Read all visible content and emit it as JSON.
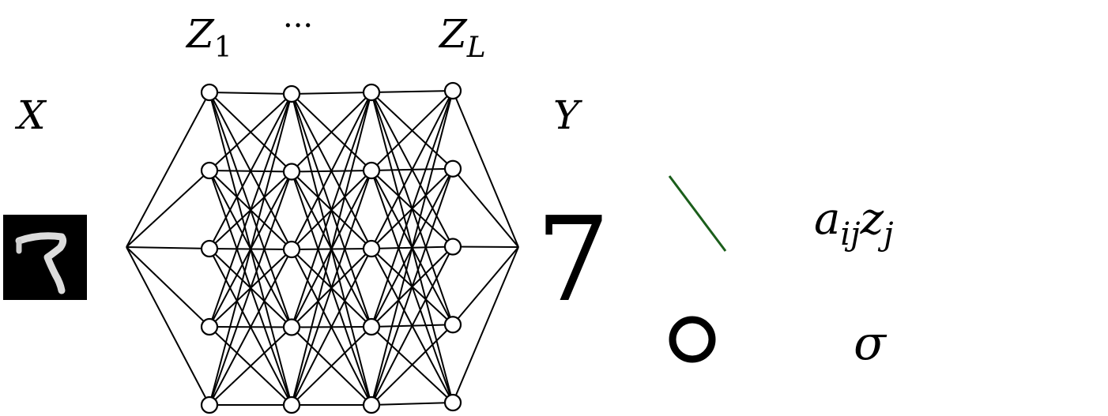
{
  "labels": {
    "input": "X",
    "output": "Y",
    "first_hidden_base": "Z",
    "first_hidden_sub": "1",
    "ellipsis": "···",
    "last_hidden_base": "Z",
    "last_hidden_sub": "L",
    "prediction": "7"
  },
  "network": {
    "hidden_layers": 4,
    "nodes_per_layer": 5
  },
  "legend": {
    "edge_color": "#1b5e1b",
    "node_color": "#000000",
    "edge_term": {
      "a": "a",
      "a_sub": "ij",
      "z": "z",
      "z_sub": "j"
    },
    "node_term": "σ"
  }
}
